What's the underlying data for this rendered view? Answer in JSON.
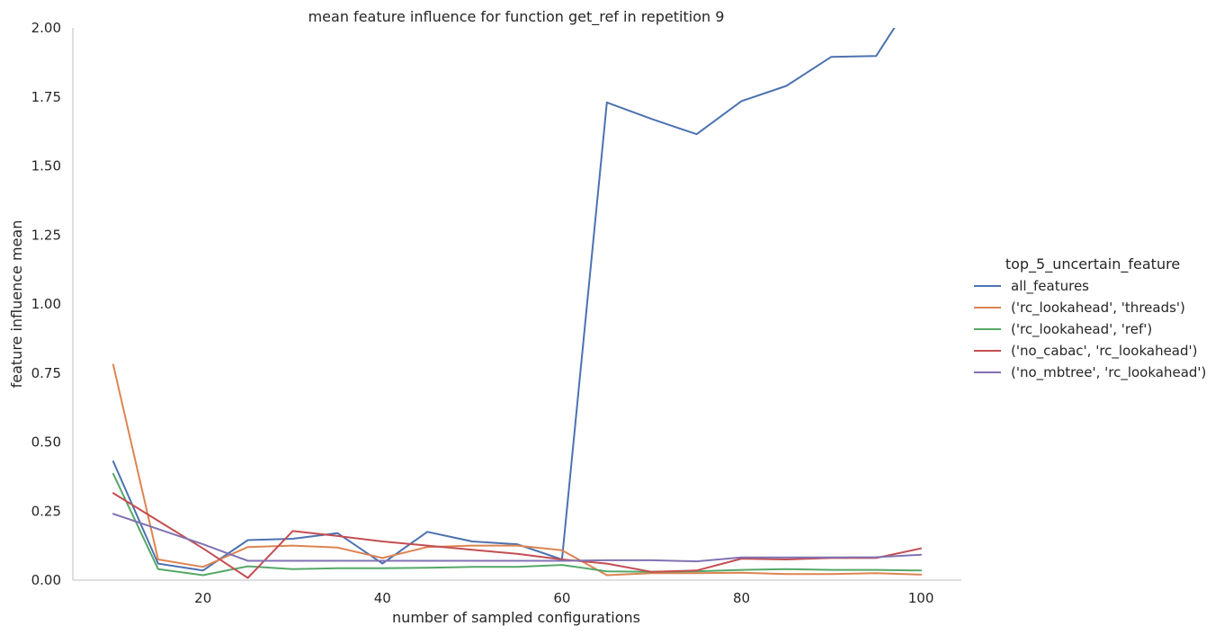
{
  "chart_data": {
    "type": "line",
    "title": "mean feature influence for function get_ref in repetition 9",
    "xlabel": "number of sampled configurations",
    "ylabel": "feature influence mean",
    "xlim": [
      5.5,
      104.5
    ],
    "ylim": [
      0.0,
      2.0
    ],
    "x_ticks": [
      20,
      40,
      60,
      80,
      100
    ],
    "y_ticks": [
      0.0,
      0.25,
      0.5,
      0.75,
      1.0,
      1.25,
      1.5,
      1.75,
      2.0
    ],
    "x_tick_labels": [
      "20",
      "40",
      "60",
      "80",
      "100"
    ],
    "y_tick_labels": [
      "0.00",
      "0.25",
      "0.50",
      "0.75",
      "1.00",
      "1.25",
      "1.50",
      "1.75",
      "2.00"
    ],
    "grid": false,
    "legend": {
      "title": "top_5_uncertain_feature",
      "placement": "right"
    },
    "x": [
      10,
      15,
      20,
      25,
      30,
      35,
      40,
      45,
      50,
      55,
      60,
      65,
      70,
      75,
      80,
      85,
      90,
      95,
      100
    ],
    "series": [
      {
        "name": "all_features",
        "color": "#4c72b0",
        "values": [
          0.43,
          0.06,
          0.035,
          0.145,
          0.15,
          0.17,
          0.06,
          0.175,
          0.14,
          0.13,
          0.075,
          1.73,
          1.67,
          1.615,
          1.735,
          1.79,
          1.895,
          1.898,
          2.15
        ]
      },
      {
        "name": "('rc_lookahead', 'threads')",
        "color": "#dd8452",
        "values": [
          0.78,
          0.075,
          0.048,
          0.12,
          0.125,
          0.118,
          0.08,
          0.12,
          0.125,
          0.125,
          0.108,
          0.018,
          0.025,
          0.025,
          0.027,
          0.022,
          0.022,
          0.025,
          0.02
        ]
      },
      {
        "name": "('rc_lookahead', 'ref')",
        "color": "#55a868",
        "values": [
          0.385,
          0.04,
          0.018,
          0.05,
          0.04,
          0.043,
          0.043,
          0.045,
          0.048,
          0.048,
          0.055,
          0.032,
          0.03,
          0.032,
          0.037,
          0.04,
          0.037,
          0.037,
          0.035
        ]
      },
      {
        "name": "('no_cabac', 'rc_lookahead')",
        "color": "#c44e52",
        "values": [
          0.315,
          0.215,
          0.115,
          0.008,
          0.178,
          0.16,
          0.14,
          0.125,
          0.11,
          0.095,
          0.075,
          0.06,
          0.03,
          0.035,
          0.078,
          0.075,
          0.08,
          0.08,
          0.115
        ]
      },
      {
        "name": "('no_mbtree', 'rc_lookahead')",
        "color": "#8172b3",
        "values": [
          0.24,
          0.185,
          0.13,
          0.07,
          0.07,
          0.07,
          0.07,
          0.07,
          0.07,
          0.07,
          0.07,
          0.072,
          0.072,
          0.068,
          0.082,
          0.082,
          0.082,
          0.083,
          0.092
        ]
      }
    ]
  }
}
